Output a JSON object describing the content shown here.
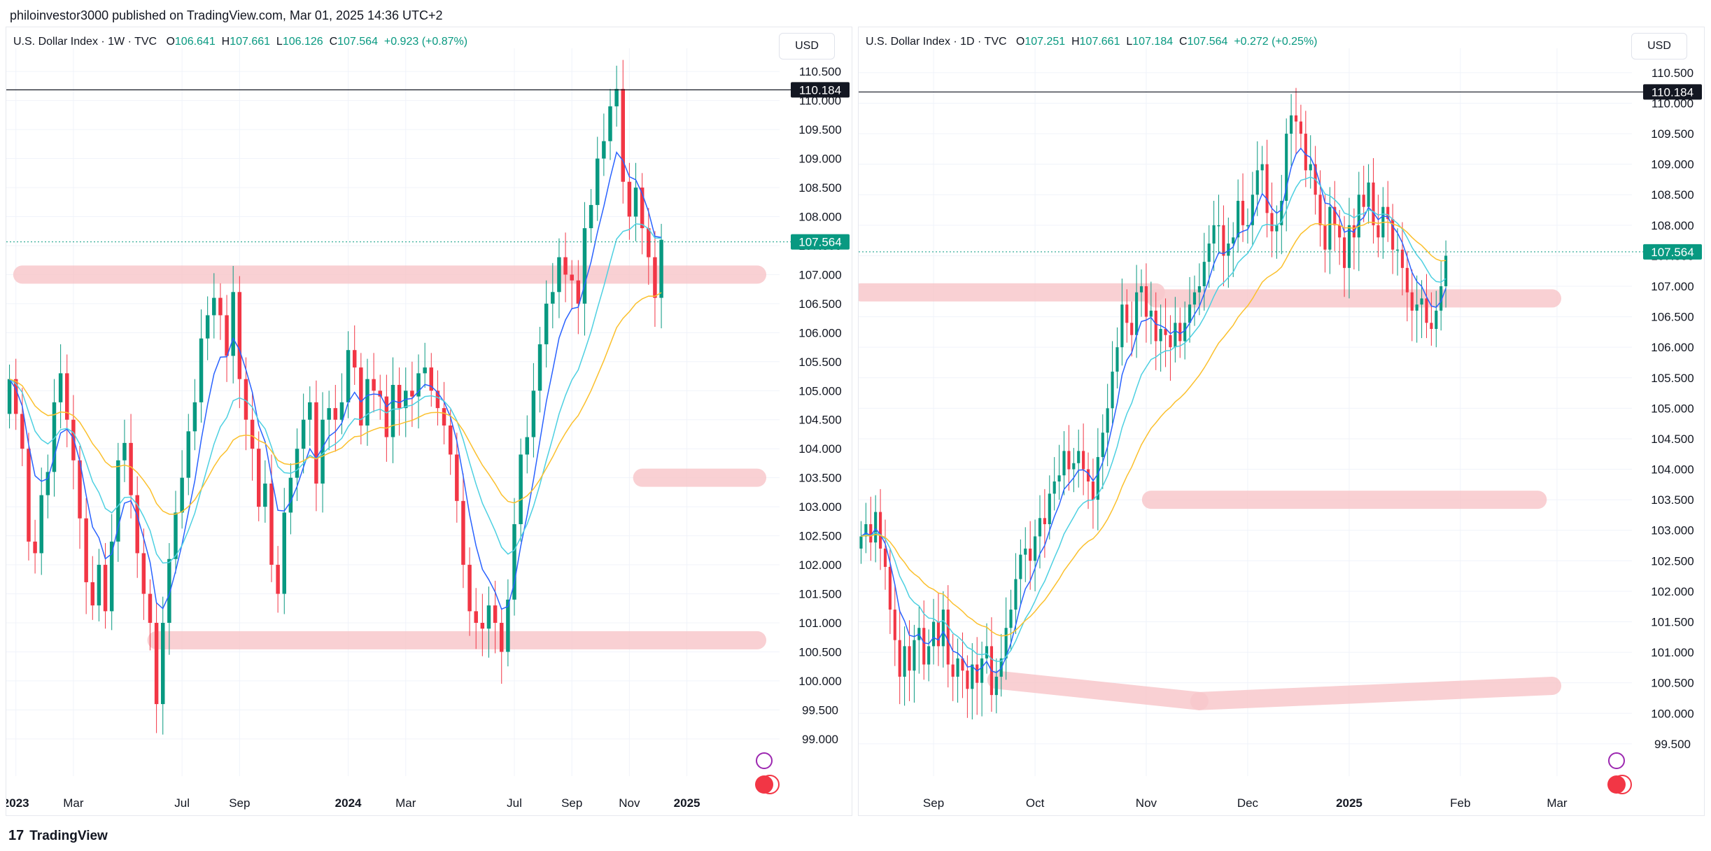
{
  "header": {
    "attribution": "philoinvestor3000 published on TradingView.com, Mar 01, 2025 14:36 UTC+2"
  },
  "footer": {
    "brand": "TradingView",
    "logo": "17"
  },
  "colors": {
    "up": "#089981",
    "down": "#f23645",
    "ma_fast": "#2962ff",
    "ma_mid": "#4dd0e1",
    "ma_slow": "#fbc02d",
    "zone": "#f8c8cc",
    "price_tag": "#089981",
    "level_tag": "#131722"
  },
  "chart_data": [
    {
      "type": "candlestick",
      "panel": "left",
      "symbol": "U.S. Dollar Index · 1W · TVC",
      "ohlc_label": {
        "o_key": "O",
        "o": "106.641",
        "h_key": "H",
        "h": "107.661",
        "l_key": "L",
        "l": "106.126",
        "c_key": "C",
        "c": "107.564",
        "change": "+0.923 (+0.87%)"
      },
      "currency": "USD",
      "ylim": [
        98.6,
        110.9
      ],
      "y_ticks": [
        "110.500",
        "110.000",
        "109.500",
        "109.000",
        "108.500",
        "108.000",
        "107.500",
        "107.000",
        "106.500",
        "106.000",
        "105.500",
        "105.000",
        "104.500",
        "104.000",
        "103.500",
        "103.000",
        "102.500",
        "102.000",
        "101.500",
        "101.000",
        "100.500",
        "100.000",
        "99.500",
        "99.000"
      ],
      "x_labels": [
        {
          "label": "2023",
          "i": 1,
          "bold": true
        },
        {
          "label": "Mar",
          "i": 10
        },
        {
          "label": "Jul",
          "i": 27
        },
        {
          "label": "Sep",
          "i": 36
        },
        {
          "label": "2024",
          "i": 53,
          "bold": true
        },
        {
          "label": "Mar",
          "i": 62
        },
        {
          "label": "Jul",
          "i": 79
        },
        {
          "label": "Sep",
          "i": 88
        },
        {
          "label": "Nov",
          "i": 97
        },
        {
          "label": "2025",
          "i": 106,
          "bold": true
        }
      ],
      "n_slots": 121,
      "closes": [
        105.2,
        104.6,
        104.0,
        102.4,
        102.2,
        103.2,
        103.6,
        104.8,
        105.3,
        104.5,
        103.8,
        102.8,
        101.7,
        101.3,
        102.0,
        101.2,
        102.4,
        103.8,
        104.1,
        103.2,
        102.2,
        101.5,
        101.0,
        99.6,
        101.0,
        102.1,
        102.9,
        103.5,
        104.3,
        104.8,
        105.9,
        106.3,
        106.6,
        106.3,
        105.6,
        106.7,
        105.2,
        104.5,
        104.0,
        103.0,
        103.4,
        102.0,
        101.5,
        102.9,
        103.5,
        104.0,
        104.5,
        104.8,
        103.4,
        104.5,
        104.7,
        104.5,
        104.8,
        105.7,
        105.4,
        104.4,
        105.2,
        105.0,
        104.9,
        104.2,
        105.1,
        104.7,
        105.0,
        104.9,
        105.3,
        105.4,
        105.0,
        104.7,
        104.4,
        103.9,
        103.1,
        102.0,
        101.2,
        101.0,
        100.9,
        101.3,
        101.0,
        100.5,
        101.4,
        102.7,
        103.9,
        104.2,
        105.0,
        105.8,
        106.5,
        106.7,
        107.3,
        107.0,
        106.9,
        106.5,
        107.8,
        108.2,
        109.0,
        109.3,
        109.9,
        110.2,
        108.6,
        108.0,
        108.5,
        107.8,
        107.3,
        106.6,
        107.6
      ],
      "opens_first": 104.6,
      "zones": [
        [
          2,
          107.0,
          117,
          107.0
        ],
        [
          23,
          100.7,
          117,
          100.7
        ],
        [
          99,
          103.5,
          117,
          103.5
        ]
      ],
      "levels": [
        {
          "value": 110.184,
          "label": "110.184"
        },
        {
          "value": 107.564,
          "label": "107.564"
        }
      ]
    },
    {
      "type": "candlestick",
      "panel": "right",
      "symbol": "U.S. Dollar Index · 1D · TVC",
      "ohlc_label": {
        "o_key": "O",
        "o": "107.251",
        "h_key": "H",
        "h": "107.661",
        "l_key": "L",
        "l": "107.184",
        "c_key": "C",
        "c": "107.564",
        "change": "+0.272 (+0.25%)"
      },
      "currency": "USD",
      "ylim": [
        99.2,
        110.9
      ],
      "y_ticks": [
        "110.500",
        "110.000",
        "109.500",
        "109.000",
        "108.500",
        "108.000",
        "107.500",
        "107.000",
        "106.500",
        "106.000",
        "105.500",
        "105.000",
        "104.500",
        "104.000",
        "103.500",
        "103.000",
        "102.500",
        "102.000",
        "101.500",
        "101.000",
        "100.500",
        "100.000",
        "99.500"
      ],
      "x_labels": [
        {
          "label": "Sep",
          "i": 15
        },
        {
          "label": "Oct",
          "i": 36
        },
        {
          "label": "Nov",
          "i": 59
        },
        {
          "label": "Dec",
          "i": 80
        },
        {
          "label": "2025",
          "i": 101,
          "bold": true
        },
        {
          "label": "Feb",
          "i": 124
        },
        {
          "label": "Mar",
          "i": 144
        }
      ],
      "n_slots": 160,
      "closes": [
        102.9,
        103.1,
        102.8,
        103.3,
        102.7,
        102.4,
        101.7,
        101.2,
        100.6,
        101.1,
        100.7,
        101.2,
        101.4,
        100.8,
        101.1,
        101.5,
        101.1,
        101.7,
        100.8,
        100.6,
        100.9,
        100.7,
        100.4,
        100.8,
        100.5,
        100.9,
        101.1,
        100.3,
        100.6,
        100.9,
        101.4,
        101.7,
        102.2,
        102.6,
        102.7,
        102.5,
        102.9,
        103.2,
        103.1,
        103.6,
        103.8,
        103.9,
        104.3,
        104.0,
        104.1,
        104.3,
        104.0,
        103.8,
        103.5,
        104.2,
        104.6,
        105.0,
        105.6,
        106.0,
        106.7,
        106.4,
        106.2,
        106.9,
        107.0,
        106.5,
        106.6,
        106.1,
        106.3,
        106.2,
        106.0,
        106.4,
        106.1,
        106.4,
        106.7,
        106.9,
        107.0,
        107.4,
        107.7,
        108.0,
        108.0,
        107.5,
        107.7,
        107.8,
        108.4,
        108.0,
        108.0,
        108.5,
        108.9,
        109.0,
        108.2,
        107.9,
        108.0,
        108.4,
        109.5,
        109.8,
        109.7,
        109.5,
        108.9,
        109.0,
        108.5,
        108.0,
        107.6,
        108.3,
        108.0,
        107.8,
        107.3,
        108.0,
        107.8,
        108.5,
        108.3,
        108.7,
        108.0,
        107.8,
        108.3,
        108.1,
        107.6,
        107.6,
        107.3,
        106.9,
        106.6,
        106.7,
        106.8,
        106.4,
        106.3,
        106.6,
        107.0,
        107.5
      ],
      "opens_first": 102.7,
      "zones": [
        [
          0,
          106.9,
          61,
          106.9
        ],
        [
          61,
          106.8,
          143,
          106.8
        ],
        [
          28,
          100.55,
          70,
          100.2
        ],
        [
          70,
          100.2,
          143,
          100.45
        ],
        [
          60,
          103.5,
          140,
          103.5
        ]
      ],
      "levels": [
        {
          "value": 110.184,
          "label": "110.184"
        },
        {
          "value": 107.564,
          "label": "107.564"
        }
      ]
    }
  ]
}
